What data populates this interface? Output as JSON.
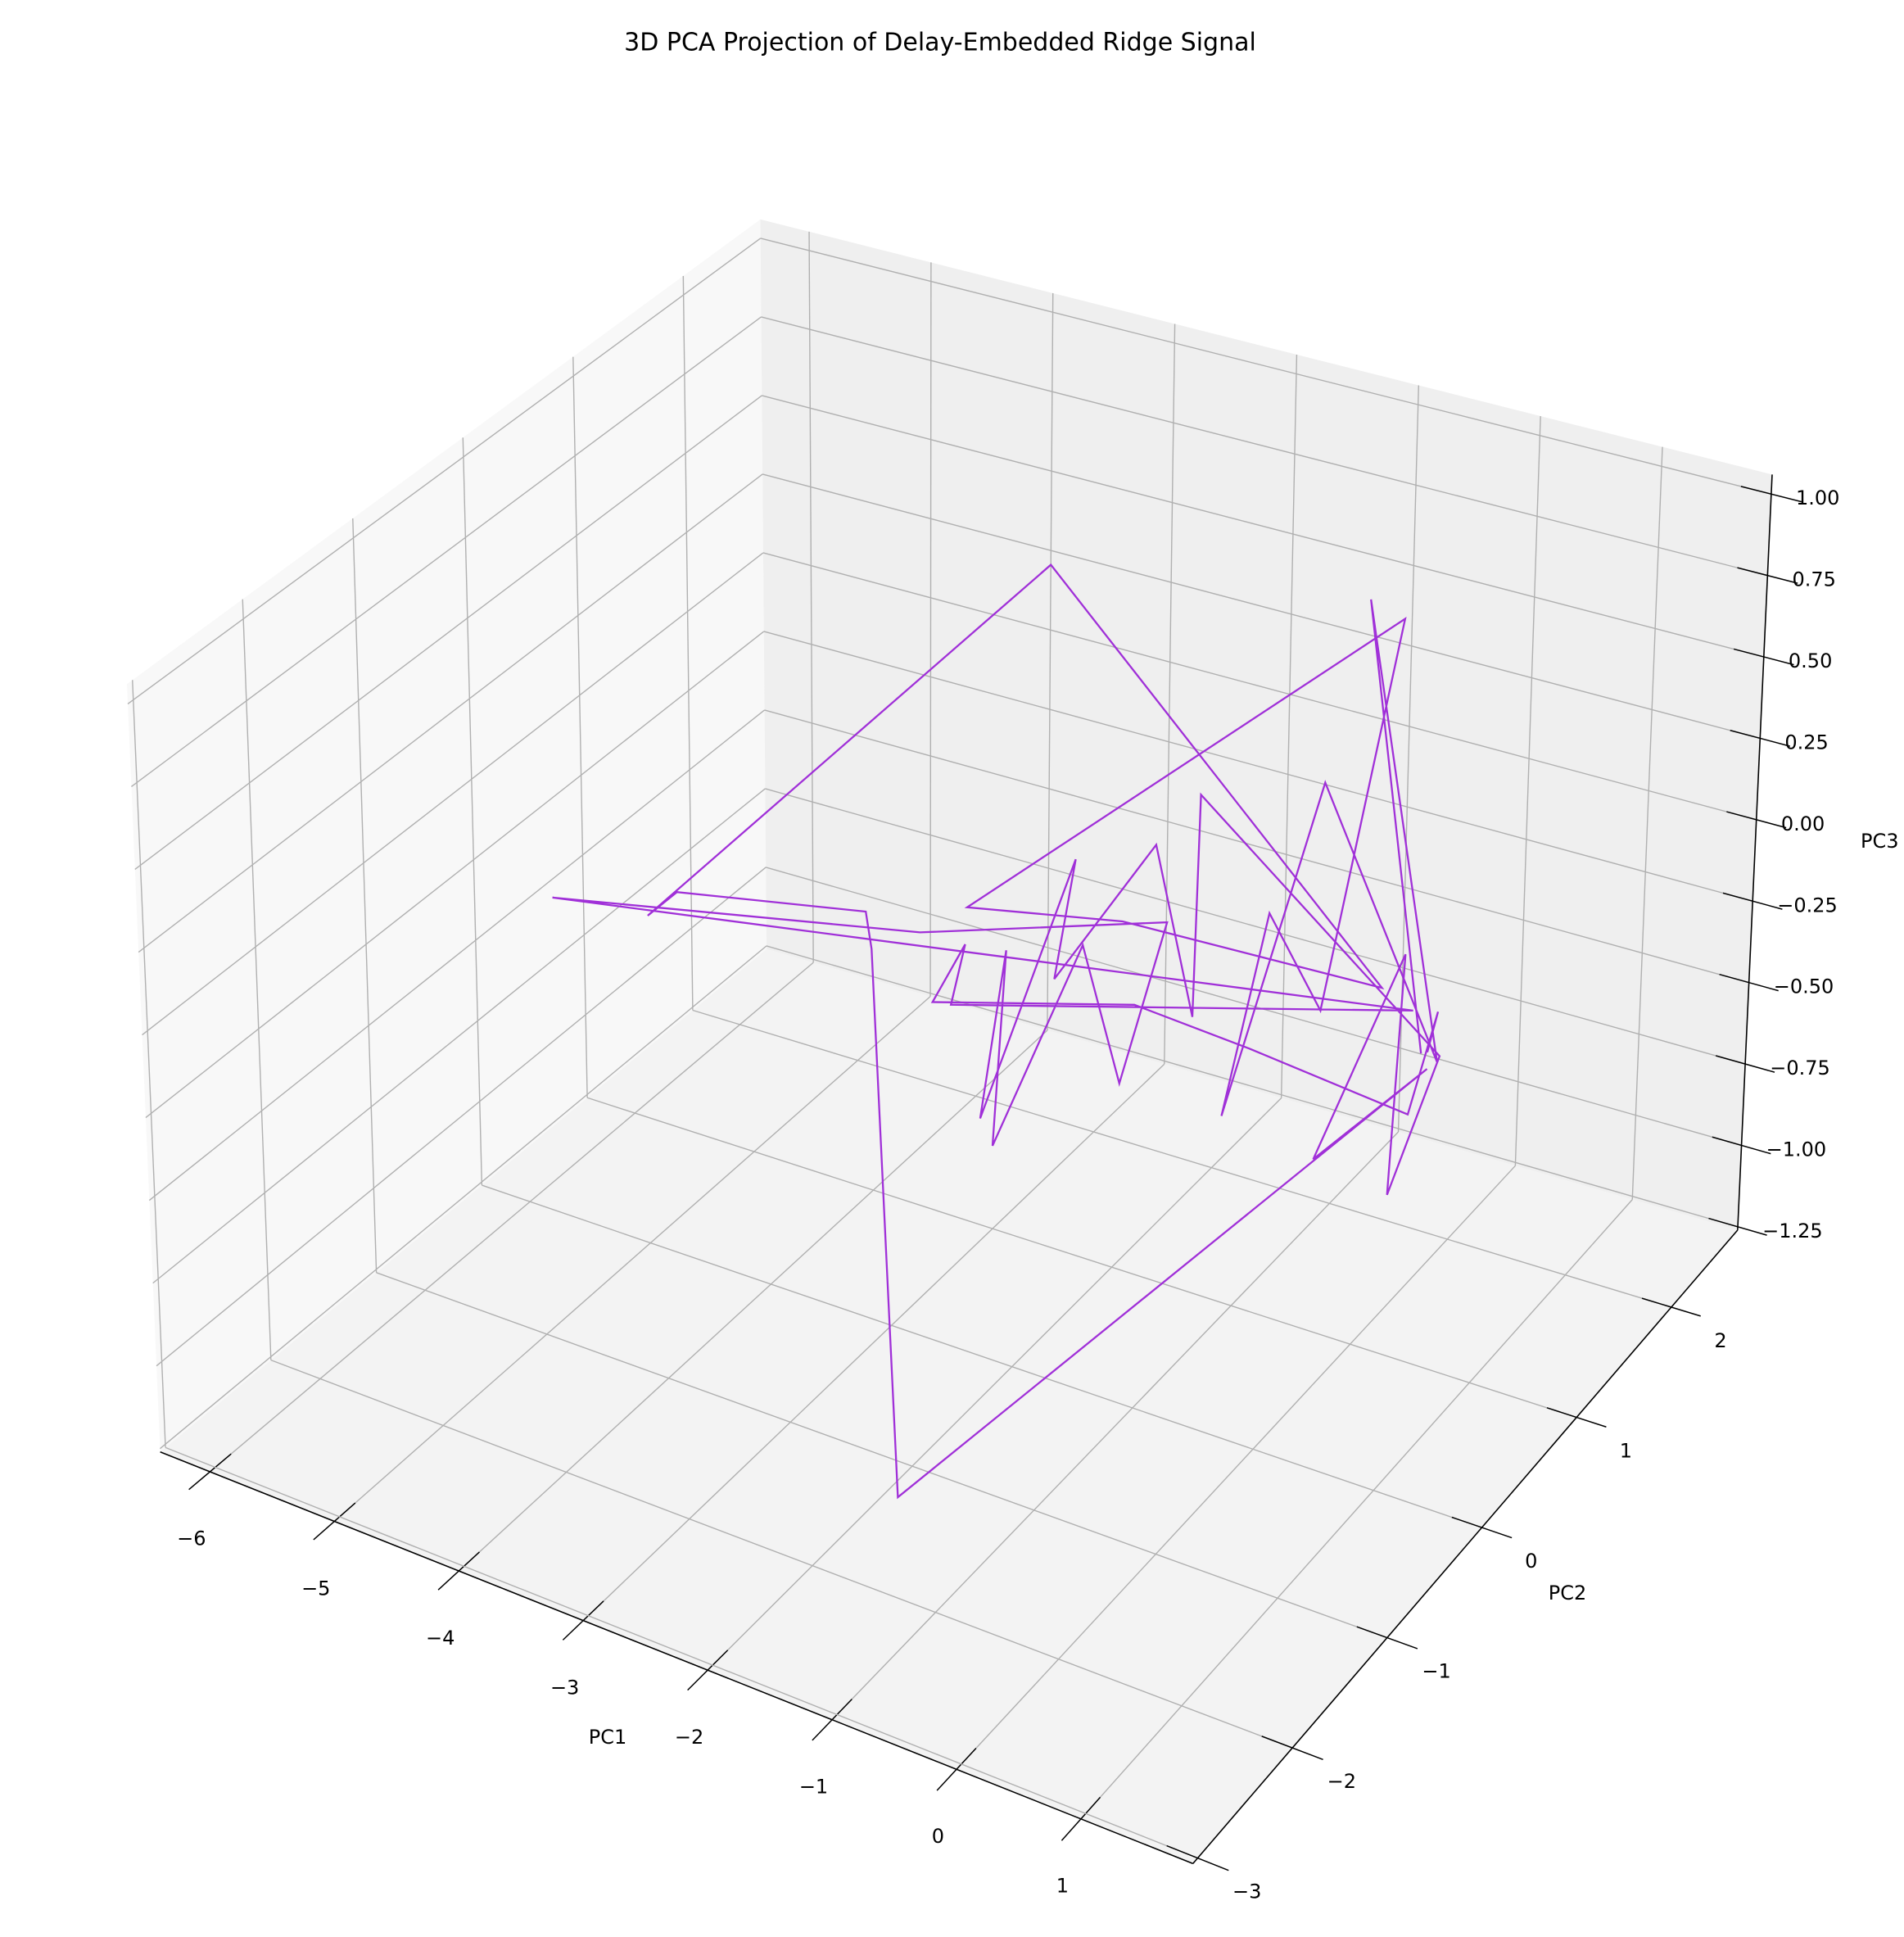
{
  "chart_data": {
    "type": "line3d",
    "title": "3D PCA Projection of Delay-Embedded Ridge Signal",
    "xlabel": "PC1",
    "ylabel": "PC2",
    "zlabel": "PC3",
    "color": "#a030d8",
    "grid": true,
    "x": [
      1.46,
      -0.4,
      1.59,
      0.19,
      0.31,
      -0.01,
      0.62,
      -0.12,
      -2.2,
      -0.96,
      1.12,
      -2.76,
      -4.82,
      -4.56,
      -3.04,
      -3.02,
      -1.38,
      1.51,
      1.28,
      1.32,
      1.65,
      1.61,
      -0.81,
      -0.39,
      -0.93,
      -1.51,
      -1.58,
      -1.64,
      -1.9,
      -1.54,
      -1.28,
      -0.75,
      -0.6,
      -2.6,
      -6.0,
      1.39,
      -2.35,
      -2.25,
      -2.5,
      -0.86,
      0.07,
      1.58,
      1.59,
      1.51
    ],
    "y": [
      -0.18,
      1.55,
      -0.18,
      0.4,
      -0.75,
      0.11,
      -0.15,
      1.55,
      -0.2,
      -0.18,
      -0.16,
      1.26,
      -0.18,
      -0.2,
      -0.18,
      -0.15,
      -1.9,
      -0.18,
      -1.04,
      -0.18,
      -0.75,
      -0.18,
      0.4,
      -0.18,
      0.11,
      -0.18,
      0.11,
      -0.75,
      -0.18,
      -0.75,
      -0.18,
      -0.46,
      -0.18,
      -0.18,
      0.27,
      -0.18,
      -0.18,
      -0.16,
      -0.18,
      -0.18,
      -0.18,
      -0.46,
      -0.18,
      -0.18
    ],
    "z": [
      0.16,
      0.8,
      0.15,
      0.65,
      0.01,
      0.32,
      0.18,
      0.77,
      0.17,
      0.27,
      0.31,
      0.74,
      -0.18,
      -0.07,
      0.05,
      -0.07,
      -1.0,
      0.12,
      0.09,
      0.44,
      -0.06,
      0.17,
      0.5,
      0.05,
      0.42,
      0.03,
      0.3,
      -0.24,
      0.07,
      -0.31,
      0.16,
      -0.11,
      0.31,
      0.04,
      -0.39,
      0.28,
      -0.15,
      0.04,
      -0.16,
      0.03,
      0.01,
      0.08,
      0.3,
      0.17
    ],
    "xlim": [
      -6.4,
      1.9
    ],
    "ylim": [
      -3.05,
      2.7
    ],
    "zlim": [
      -1.26,
      1.06
    ],
    "xticks": [
      {
        "value": -6,
        "label": "−6"
      },
      {
        "value": -5,
        "label": "−5"
      },
      {
        "value": -4,
        "label": "−4"
      },
      {
        "value": -3,
        "label": "−3"
      },
      {
        "value": -2,
        "label": "−2"
      },
      {
        "value": -1,
        "label": "−1"
      },
      0,
      1
    ],
    "yticks": [
      {
        "value": -3,
        "label": "−3"
      },
      {
        "value": -2,
        "label": "−2"
      },
      {
        "value": -1,
        "label": "−1"
      },
      0,
      1,
      2
    ],
    "zticks": [
      {
        "value": -1.25,
        "label": "−1.25"
      },
      {
        "value": -1,
        "label": "−1.00"
      },
      {
        "value": -0.75,
        "label": "−0.75"
      },
      {
        "value": -0.5,
        "label": "−0.50"
      },
      {
        "value": -0.25,
        "label": "−0.25"
      },
      {
        "value": 0,
        "label": "0.00"
      },
      0.25,
      {
        "value": 0.5,
        "label": "0.50"
      },
      0.75,
      {
        "value": 1,
        "label": "1.00"
      }
    ]
  }
}
